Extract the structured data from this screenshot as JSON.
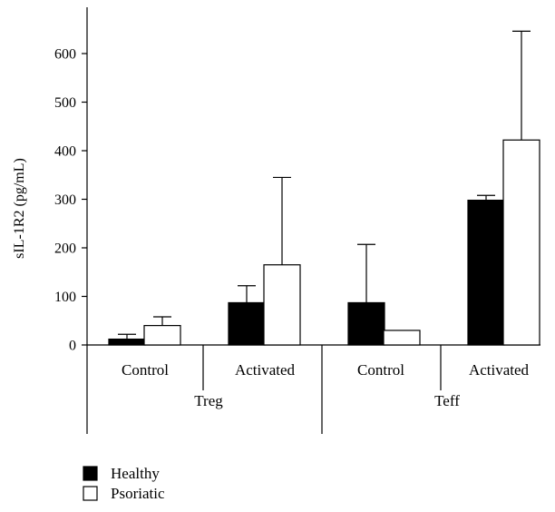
{
  "chart_data": {
    "type": "bar",
    "title": "",
    "ylabel": "sIL-1R2 (pg/mL)",
    "xlabel": "",
    "ylim": [
      0,
      700
    ],
    "yticks": [
      0,
      100,
      200,
      300,
      400,
      500,
      600
    ],
    "grid": false,
    "legend_position": "bottom-left",
    "groups": [
      {
        "label": "Treg",
        "categories": [
          "Control",
          "Activated"
        ]
      },
      {
        "label": "Teff",
        "categories": [
          "Control",
          "Activated"
        ]
      }
    ],
    "categories": [
      "Control",
      "Activated",
      "Control",
      "Activated"
    ],
    "series": [
      {
        "name": "Healthy",
        "color": "#000000",
        "values": [
          12,
          87,
          87,
          298
        ],
        "error": [
          10,
          35,
          120,
          10
        ]
      },
      {
        "name": "Psoriatic",
        "color": "#ffffff",
        "values": [
          40,
          165,
          30,
          422
        ],
        "error": [
          18,
          180,
          0,
          224
        ]
      }
    ]
  }
}
